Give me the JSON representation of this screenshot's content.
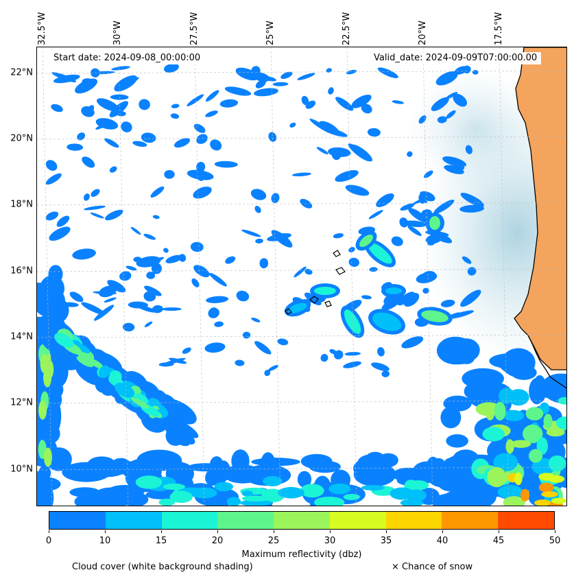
{
  "header": {
    "start_date": "Start date: 2024-09-08_00:00:00",
    "valid_date": "Valid_date: 2024-09-09T07:00:00.00"
  },
  "axes": {
    "lat_labels": [
      "22°N",
      "20°N",
      "18°N",
      "16°N",
      "14°N",
      "12°N",
      "10°N"
    ],
    "lon_labels": [
      "32.5°W",
      "30°W",
      "27.5°W",
      "25°W",
      "22.5°W",
      "20°W",
      "17.5°W"
    ]
  },
  "colorbar": {
    "title": "Maximum reflectivity (dbz)",
    "ticks": [
      "0",
      "10",
      "15",
      "20",
      "25",
      "30",
      "35",
      "40",
      "45",
      "50"
    ],
    "colors": [
      "#0a82ff",
      "#00c0fa",
      "#1cf4d6",
      "#5ef58c",
      "#9bf55a",
      "#d7fc21",
      "#fcd400",
      "#ff9700",
      "#ff4a00"
    ]
  },
  "legend": {
    "cloud_note": "Cloud cover (white background shading)",
    "snow_note": "× Chance of snow"
  },
  "colors": {
    "land": "#f4a45d",
    "cloud_shade": "#b9dbe6",
    "coast": "#000000",
    "grid": "#bbbbbb"
  }
}
